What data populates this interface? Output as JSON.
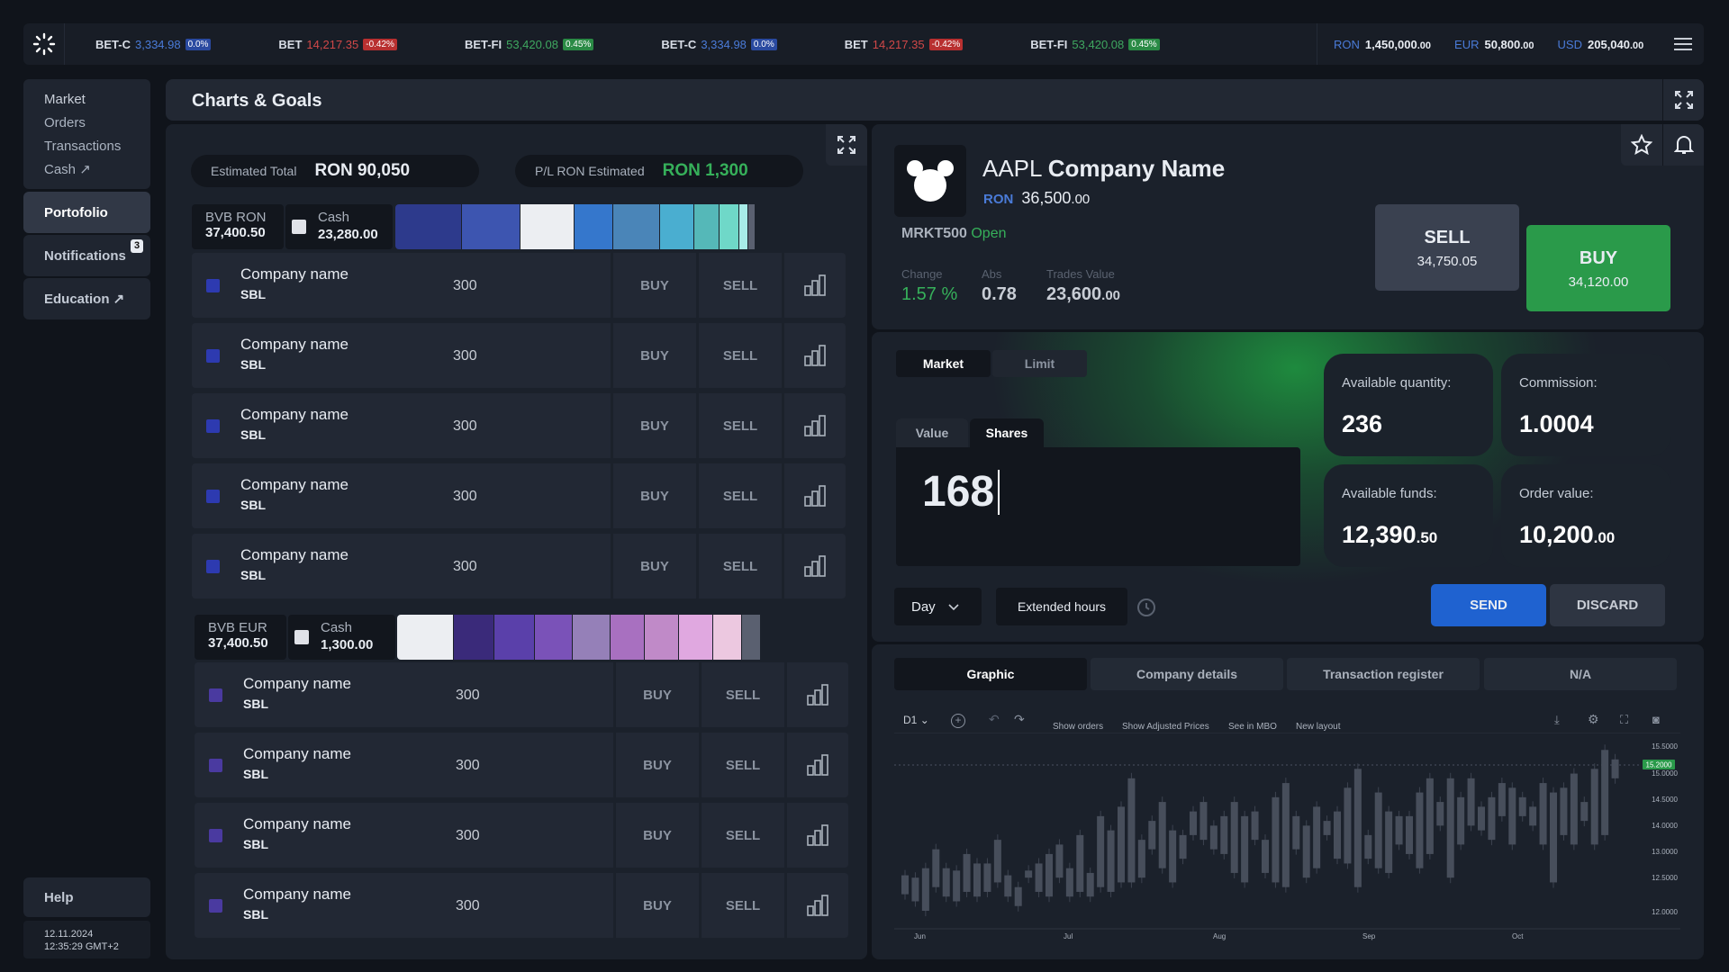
{
  "ticker": [
    {
      "name": "BET-C",
      "value": "3,334.98",
      "change": "0.0%",
      "color": "#4a7bd8",
      "badge": "#2a4aa0"
    },
    {
      "name": "BET",
      "value": "14,217.35",
      "change": "-0.42%",
      "color": "#d04848",
      "badge": "#b83030"
    },
    {
      "name": "BET-FI",
      "value": "53,420.08",
      "change": "0.45%",
      "color": "#3fa860",
      "badge": "#2a8a45"
    },
    {
      "name": "BET-C",
      "value": "3,334.98",
      "change": "0.0%",
      "color": "#4a7bd8",
      "badge": "#2a4aa0"
    },
    {
      "name": "BET",
      "value": "14,217.35",
      "change": "-0.42%",
      "color": "#d04848",
      "badge": "#b83030"
    },
    {
      "name": "BET-FI",
      "value": "53,420.08",
      "change": "0.45%",
      "color": "#3fa860",
      "badge": "#2a8a45"
    }
  ],
  "balances": [
    {
      "currency": "RON",
      "amount": "1,450,000",
      "dec": ".00"
    },
    {
      "currency": "EUR",
      "amount": "50,800",
      "dec": ".00"
    },
    {
      "currency": "USD",
      "amount": "205,040",
      "dec": ".00"
    }
  ],
  "sidebar": {
    "items": [
      "Market",
      "Orders",
      "Transactions",
      "Cash"
    ],
    "portfolio": "Portofolio",
    "notifications": "Notifications",
    "notif_count": "3",
    "education": "Education",
    "help": "Help",
    "date": "12.11.2024",
    "time": "12:35:29 GMT+2"
  },
  "header": {
    "title": "Charts & Goals"
  },
  "summary": {
    "est_label": "Estimated Total",
    "est_value": "RON 90,050",
    "pl_label": "P/L RON Estimated",
    "pl_value": "RON 1,300"
  },
  "group1": {
    "title": "BVB RON",
    "total": "37,400.50",
    "cash_label": "Cash",
    "cash": "23,280.00",
    "segments": [
      {
        "c": "#2d3a8c",
        "w": 74
      },
      {
        "c": "#3d55b0",
        "w": 65
      },
      {
        "c": "#eceef2",
        "w": 60
      },
      {
        "c": "#3577cc",
        "w": 43
      },
      {
        "c": "#4a85b8",
        "w": 52
      },
      {
        "c": "#4aaed0",
        "w": 38
      },
      {
        "c": "#55b8b8",
        "w": 28
      },
      {
        "c": "#6fd8c8",
        "w": 22
      },
      {
        "c": "#a8ece8",
        "w": 10
      },
      {
        "c": "#5a6070",
        "w": 8
      }
    ]
  },
  "group2": {
    "title": "BVB EUR",
    "total": "37,400.50",
    "cash_label": "Cash",
    "cash": "1,300.00",
    "segments": [
      {
        "c": "#eceef2",
        "w": 63
      },
      {
        "c": "#3a2a7a",
        "w": 45
      },
      {
        "c": "#5a40aa",
        "w": 45
      },
      {
        "c": "#7a52b8",
        "w": 42
      },
      {
        "c": "#9580b8",
        "w": 42
      },
      {
        "c": "#a870c0",
        "w": 38
      },
      {
        "c": "#c08ac8",
        "w": 38
      },
      {
        "c": "#e0a8e0",
        "w": 38
      },
      {
        "c": "#ecc8e0",
        "w": 32
      },
      {
        "c": "#5a6070",
        "w": 21
      }
    ]
  },
  "holdings": [
    {
      "name": "Company name",
      "symbol": "SBL",
      "qty": "300",
      "color": "#2d3ab0"
    },
    {
      "name": "Company name",
      "symbol": "SBL",
      "qty": "300",
      "color": "#2d3ab0"
    },
    {
      "name": "Company name",
      "symbol": "SBL",
      "qty": "300",
      "color": "#2d3ab0"
    },
    {
      "name": "Company name",
      "symbol": "SBL",
      "qty": "300",
      "color": "#2d3ab0"
    },
    {
      "name": "Company name",
      "symbol": "SBL",
      "qty": "300",
      "color": "#2d3ab0"
    },
    {
      "name": "Company name",
      "symbol": "SBL",
      "qty": "300",
      "color": "#4a3aa0"
    },
    {
      "name": "Company name",
      "symbol": "SBL",
      "qty": "300",
      "color": "#4a3aa0"
    },
    {
      "name": "Company name",
      "symbol": "SBL",
      "qty": "300",
      "color": "#4a3aa0"
    },
    {
      "name": "Company name",
      "symbol": "SBL",
      "qty": "300",
      "color": "#4a3aa0"
    }
  ],
  "row_labels": {
    "buy": "BUY",
    "sell": "SELL"
  },
  "stock": {
    "ticker": "AAPL",
    "company": "Company Name",
    "currency": "RON",
    "price": "36,500",
    "price_dec": ".00",
    "market": "MRKT500",
    "status": "Open",
    "change_label": "Change",
    "change": "1.57 %",
    "abs_label": "Abs",
    "abs": "0.78",
    "tv_label": "Trades Value",
    "tv": "23,600",
    "tv_dec": ".00"
  },
  "trade": {
    "sell_label": "SELL",
    "sell_price": "34,750.05",
    "buy_label": "BUY",
    "buy_price": "34,120.00",
    "market_tab": "Market",
    "limit_tab": "Limit",
    "value_tab": "Value",
    "shares_tab": "Shares",
    "input_value": "168",
    "duration": "Day",
    "extended": "Extended hours",
    "send": "SEND",
    "discard": "DISCARD"
  },
  "cards": [
    {
      "label": "Available quantity:",
      "value": "236",
      "dec": ""
    },
    {
      "label": "Commission:",
      "value": "1.0004",
      "dec": ""
    },
    {
      "label": "Available funds:",
      "value": "12,390",
      "dec": ".50"
    },
    {
      "label": "Order value:",
      "value": "10,200",
      "dec": ".00"
    }
  ],
  "tabs": [
    "Graphic",
    "Company details",
    "Transaction register",
    "N/A"
  ],
  "chart_toolbar": {
    "interval": "D1",
    "show_orders": "Show orders",
    "adjusted": "Show Adjusted Prices",
    "mbo": "See in MBO",
    "layout": "New layout"
  },
  "chart_data": {
    "type": "candlestick",
    "x_ticks": [
      "Jun",
      "Jul",
      "Aug",
      "Sep",
      "Oct"
    ],
    "y_ticks": [
      "15.5000",
      "15.0000",
      "14.5000",
      "14.0000",
      "13.0000",
      "12.5000",
      "12.0000"
    ],
    "last_price": "15.2000",
    "candles": [
      [
        12.35,
        12.75
      ],
      [
        12.2,
        12.7
      ],
      [
        12.0,
        12.9
      ],
      [
        12.5,
        13.3
      ],
      [
        12.3,
        12.9
      ],
      [
        12.2,
        12.85
      ],
      [
        12.4,
        13.2
      ],
      [
        12.3,
        13.0
      ],
      [
        12.4,
        13.0
      ],
      [
        12.6,
        13.5
      ],
      [
        12.3,
        12.75
      ],
      [
        12.1,
        12.5
      ],
      [
        12.7,
        12.85
      ],
      [
        12.4,
        13.0
      ],
      [
        12.3,
        13.2
      ],
      [
        12.7,
        13.4
      ],
      [
        12.3,
        12.9
      ],
      [
        12.4,
        13.6
      ],
      [
        12.3,
        12.8
      ],
      [
        12.5,
        14.0
      ],
      [
        12.4,
        13.7
      ],
      [
        12.6,
        14.2
      ],
      [
        12.6,
        14.8
      ],
      [
        12.7,
        13.5
      ],
      [
        13.3,
        13.9
      ],
      [
        12.9,
        14.3
      ],
      [
        12.6,
        13.7
      ],
      [
        13.1,
        13.6
      ],
      [
        13.6,
        14.1
      ],
      [
        13.5,
        14.3
      ],
      [
        13.3,
        13.8
      ],
      [
        13.2,
        14.0
      ],
      [
        12.8,
        14.3
      ],
      [
        12.6,
        14.0
      ],
      [
        13.5,
        14.1
      ],
      [
        12.8,
        13.5
      ],
      [
        12.6,
        14.4
      ],
      [
        12.5,
        14.7
      ],
      [
        13.3,
        14.0
      ],
      [
        12.7,
        13.8
      ],
      [
        12.9,
        14.2
      ],
      [
        13.6,
        13.9
      ],
      [
        13.1,
        14.1
      ],
      [
        13.0,
        14.6
      ],
      [
        12.5,
        15.0
      ],
      [
        13.1,
        13.6
      ],
      [
        12.9,
        14.5
      ],
      [
        12.8,
        14.1
      ],
      [
        13.4,
        14.0
      ],
      [
        13.2,
        14.0
      ],
      [
        12.9,
        14.5
      ],
      [
        13.2,
        14.8
      ],
      [
        13.8,
        14.3
      ],
      [
        12.7,
        14.8
      ],
      [
        13.4,
        14.4
      ],
      [
        13.8,
        14.8
      ],
      [
        13.7,
        14.2
      ],
      [
        13.5,
        14.4
      ],
      [
        14.0,
        14.7
      ],
      [
        13.4,
        14.6
      ],
      [
        14.0,
        14.4
      ],
      [
        13.8,
        14.2
      ],
      [
        13.4,
        14.7
      ],
      [
        12.6,
        14.5
      ],
      [
        13.6,
        14.6
      ],
      [
        13.4,
        14.9
      ],
      [
        13.9,
        14.3
      ],
      [
        13.4,
        15.0
      ],
      [
        13.6,
        15.4
      ],
      [
        14.8,
        15.2
      ]
    ]
  },
  "colors": {
    "green": "#36b05a",
    "blue": "#2f6fd8",
    "up": "#4b5160"
  }
}
